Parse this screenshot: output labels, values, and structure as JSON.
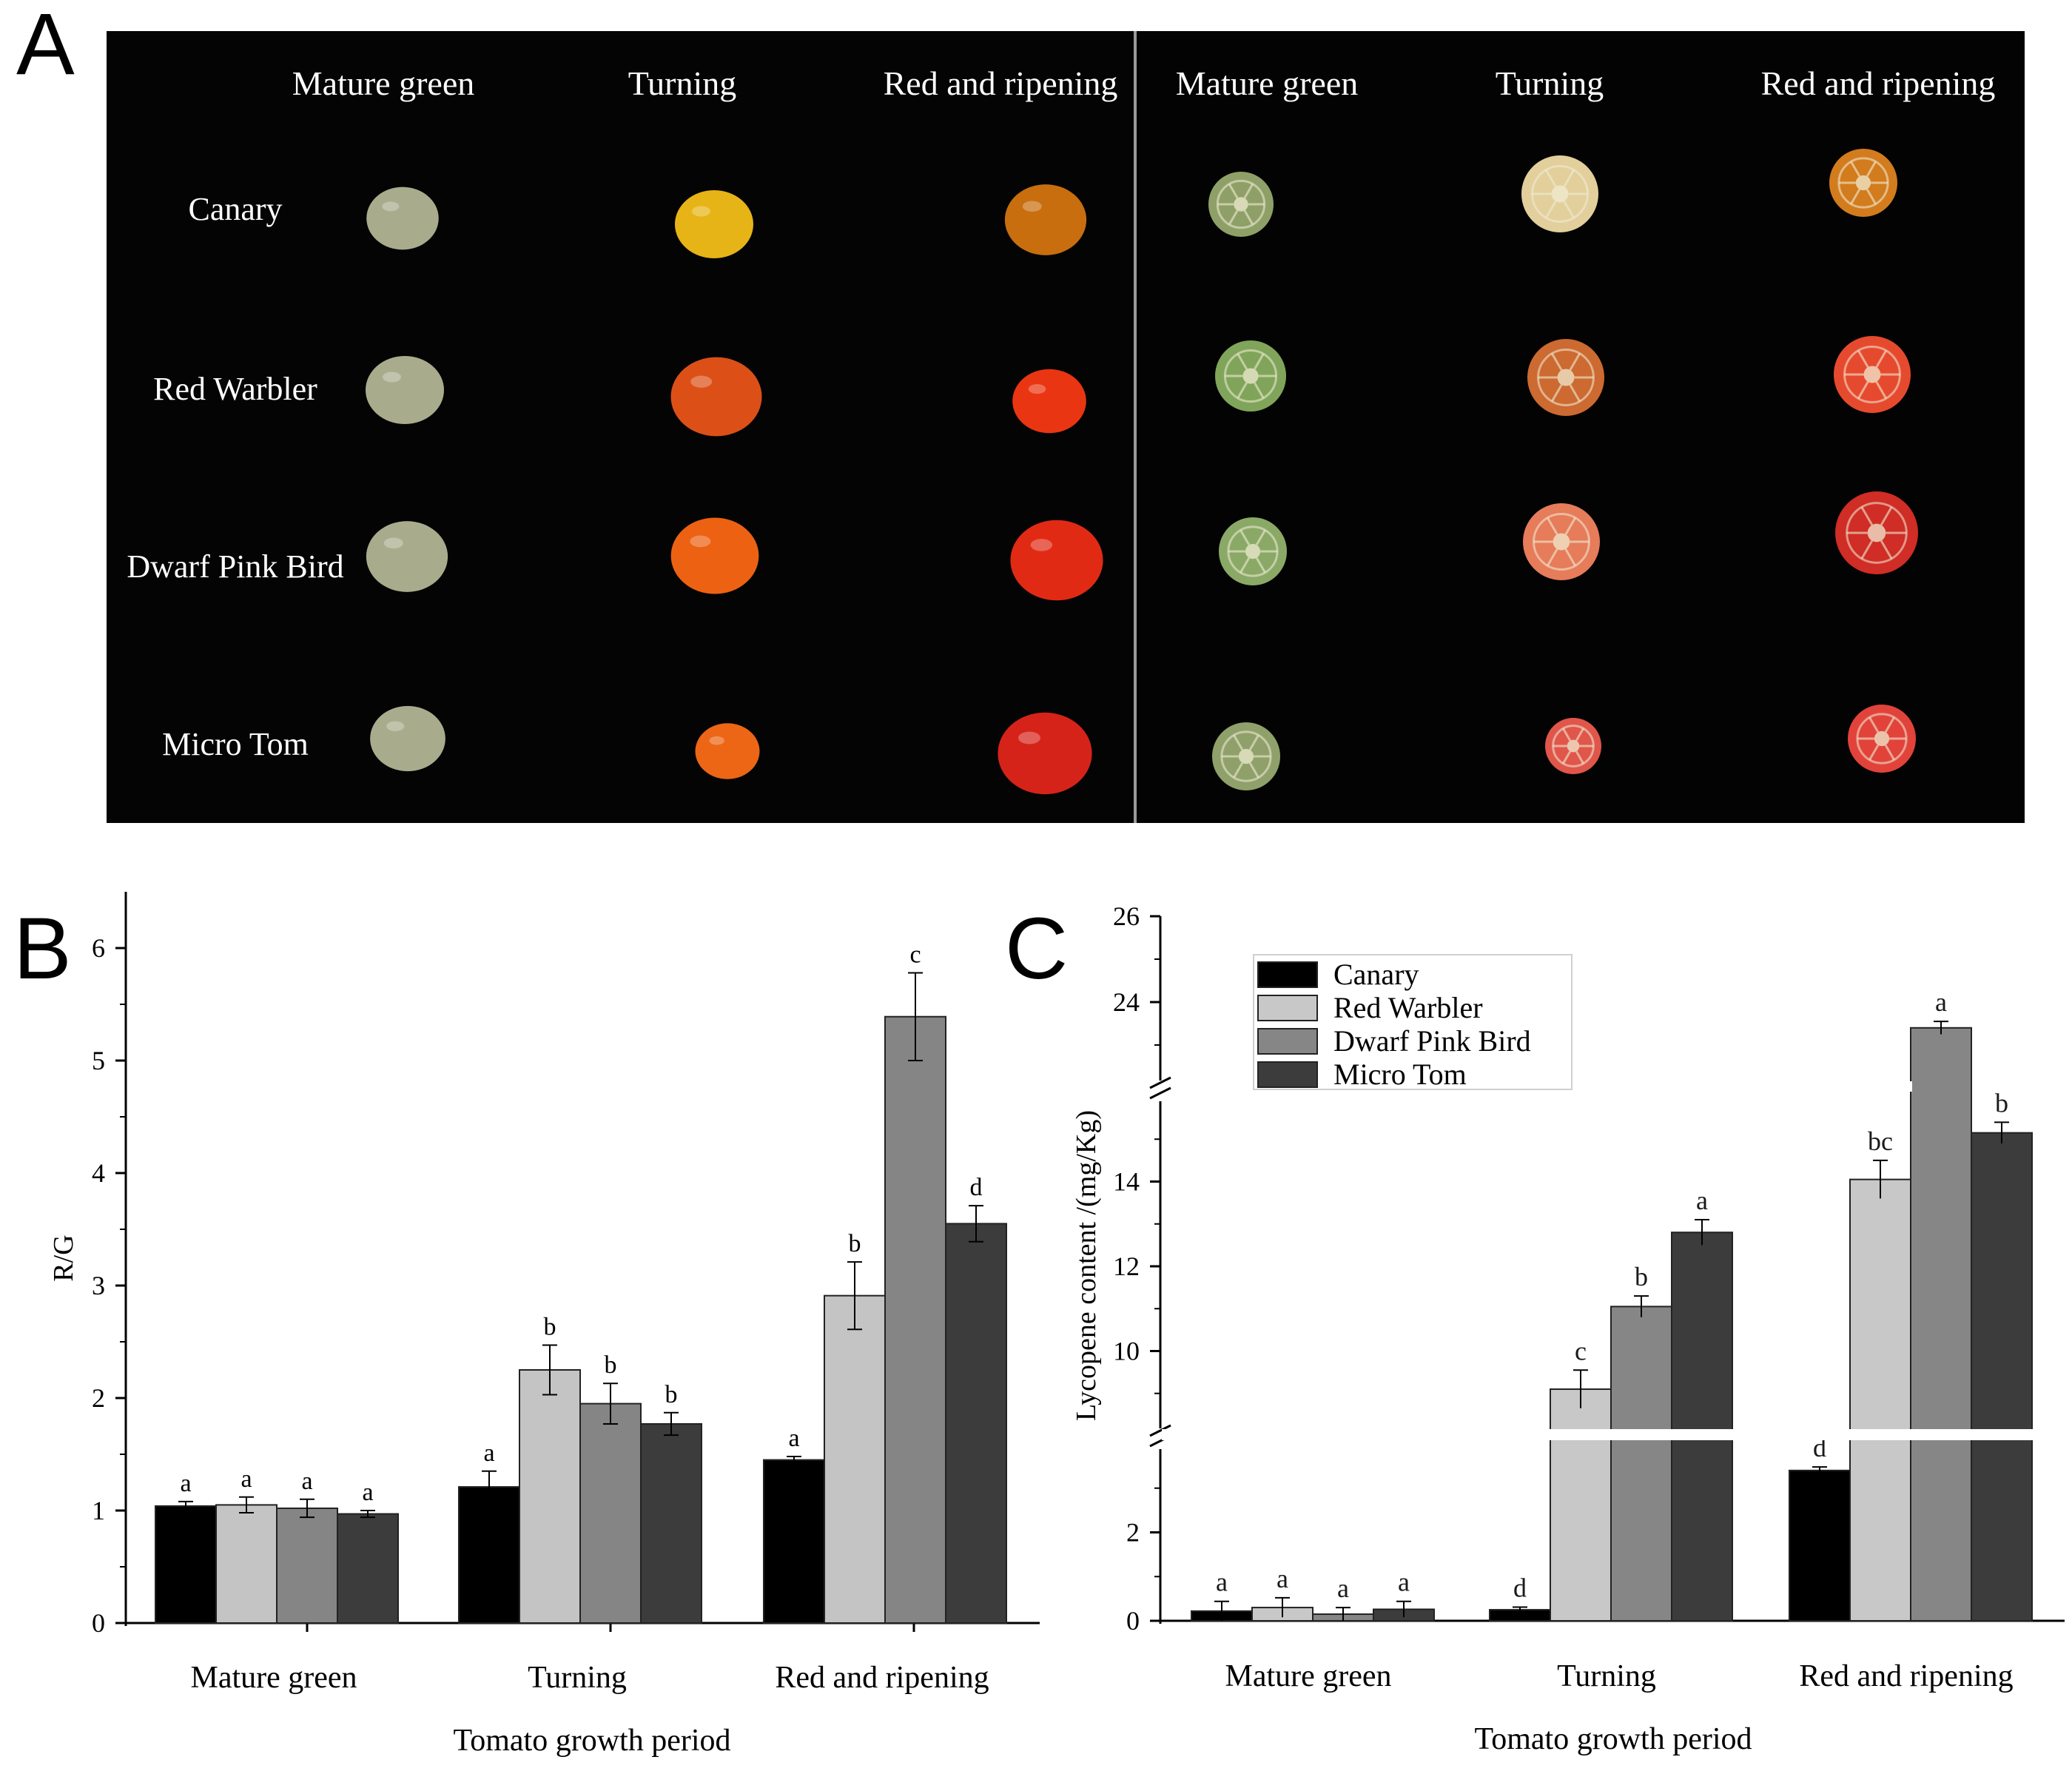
{
  "panel_a": {
    "letter": "A",
    "left_headers": [
      "Mature green",
      "Turning",
      "Red and ripening"
    ],
    "right_headers": [
      "Mature green",
      "Turning",
      "Red and ripening"
    ],
    "row_labels": [
      "Canary",
      "Red Warbler",
      "Dwarf Pink Bird",
      "Micro Tom"
    ],
    "whole_fruit_colors": [
      [
        "#a9ac8c",
        "#e7b417",
        "#c86e0f"
      ],
      [
        "#a9ac8c",
        "#dc5018",
        "#ea3512"
      ],
      [
        "#a9ac8c",
        "#ec6212",
        "#e12a14"
      ],
      [
        "#a9ac8c",
        "#ec6616",
        "#d6231a"
      ]
    ],
    "cut_fruit_colors": [
      [
        "#8ea067",
        "#e2cf9b",
        "#d27c1e"
      ],
      [
        "#80a55a",
        "#cc6a31",
        "#e64a2e"
      ],
      [
        "#8aa967",
        "#e67c5a",
        "#cf2d25"
      ],
      [
        "#90a06a",
        "#e0564a",
        "#e1433a"
      ]
    ]
  },
  "chart_data": [
    {
      "panel": "B",
      "type": "bar",
      "categories": [
        "Mature green",
        "Turning",
        "Red and ripening"
      ],
      "xlabel": "Tomato growth period",
      "ylabel": "R/G",
      "ylim": [
        0,
        6.5
      ],
      "yticks": [
        0,
        1,
        2,
        3,
        4,
        5,
        6
      ],
      "legend": "none",
      "series": [
        {
          "values": [
            1.04,
            1.21,
            1.45
          ],
          "errors": [
            0.04,
            0.14,
            0.03
          ],
          "letters": [
            "a",
            "a",
            "a"
          ],
          "color": "#000000"
        },
        {
          "values": [
            1.05,
            2.25,
            2.91
          ],
          "errors": [
            0.07,
            0.22,
            0.3
          ],
          "letters": [
            "a",
            "b",
            "b"
          ],
          "color": "#c4c4c4"
        },
        {
          "values": [
            1.02,
            1.95,
            5.39
          ],
          "errors": [
            0.08,
            0.18,
            0.39
          ],
          "letters": [
            "a",
            "b",
            "c"
          ],
          "color": "#858585"
        },
        {
          "values": [
            0.97,
            1.77,
            3.55
          ],
          "errors": [
            0.03,
            0.1,
            0.16
          ],
          "letters": [
            "a",
            "b",
            "d"
          ],
          "color": "#3c3c3c"
        }
      ]
    },
    {
      "panel": "C",
      "type": "bar",
      "categories": [
        "Mature green",
        "Turning",
        "Red and ripening"
      ],
      "xlabel": "Tomato growth period",
      "ylabel": "Lycopene content /(mg/Kg)",
      "ylim": [
        0,
        26
      ],
      "axis_breaks": [
        [
          4,
          8
        ],
        [
          16,
          22
        ]
      ],
      "yticks": [
        0,
        2,
        10,
        12,
        14,
        24,
        26
      ],
      "legend": "top-left",
      "series": [
        {
          "name": "Canary",
          "values": [
            0.22,
            0.25,
            3.4
          ],
          "errors": [
            0.22,
            0.06,
            0.08
          ],
          "letters": [
            "a",
            "d",
            "d"
          ],
          "color": "#000000"
        },
        {
          "name": "Red Warbler",
          "values": [
            0.3,
            9.1,
            14.05
          ],
          "errors": [
            0.22,
            0.45,
            0.45
          ],
          "letters": [
            "a",
            "c",
            "bc"
          ],
          "color": "#c8c8c8"
        },
        {
          "name": "Dwarf Pink Bird",
          "values": [
            0.15,
            11.05,
            23.4
          ],
          "errors": [
            0.15,
            0.25,
            0.15
          ],
          "letters": [
            "a",
            "b",
            "a"
          ],
          "color": "#868686"
        },
        {
          "name": "Micro Tom",
          "values": [
            0.26,
            12.8,
            15.15
          ],
          "errors": [
            0.18,
            0.3,
            0.25
          ],
          "letters": [
            "a",
            "a",
            "b"
          ],
          "color": "#3c3c3c"
        }
      ]
    }
  ]
}
